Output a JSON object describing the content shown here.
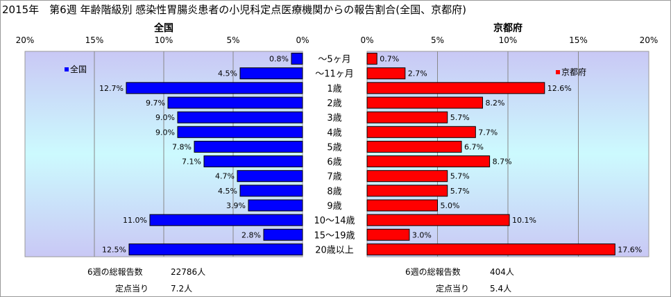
{
  "title": "2015年　第6週 年齢階級別 感染性胃腸炎患者の小児科定点医療機関からの報告割合(全国、京都府)",
  "chart_data": [
    {
      "type": "bar",
      "orientation": "horizontal",
      "direction": "right-to-left",
      "title": "全国",
      "legend": "全国",
      "legend_position": "top-left",
      "series_color": "#0000ff",
      "categories": [
        "～5ヶ月",
        "～11ヶ月",
        "1歳",
        "2歳",
        "3歳",
        "4歳",
        "5歳",
        "6歳",
        "7歳",
        "8歳",
        "9歳",
        "10～14歳",
        "15～19歳",
        "20歳以上"
      ],
      "values": [
        0.8,
        4.5,
        12.7,
        9.7,
        9.0,
        9.0,
        7.8,
        7.1,
        4.7,
        4.5,
        3.9,
        11.0,
        2.8,
        12.5
      ],
      "value_labels": [
        "0.8%",
        "4.5%",
        "12.7%",
        "9.7%",
        "9.0%",
        "9.0%",
        "7.8%",
        "7.1%",
        "4.7%",
        "4.5%",
        "3.9%",
        "11.0%",
        "2.8%",
        "12.5%"
      ],
      "xlim": [
        0,
        20
      ],
      "xticks": [
        "20%",
        "15%",
        "10%",
        "5%",
        "0%"
      ],
      "grid": true
    },
    {
      "type": "bar",
      "orientation": "horizontal",
      "direction": "left-to-right",
      "title": "京都府",
      "legend": "京都府",
      "legend_position": "top-right",
      "series_color": "#ff0000",
      "categories": [
        "～5ヶ月",
        "～11ヶ月",
        "1歳",
        "2歳",
        "3歳",
        "4歳",
        "5歳",
        "6歳",
        "7歳",
        "8歳",
        "9歳",
        "10～14歳",
        "15～19歳",
        "20歳以上"
      ],
      "values": [
        0.7,
        2.7,
        12.6,
        8.2,
        5.7,
        7.7,
        6.7,
        8.7,
        5.7,
        5.7,
        5.0,
        10.1,
        3.0,
        17.6
      ],
      "value_labels": [
        "0.7%",
        "2.7%",
        "12.6%",
        "8.2%",
        "5.7%",
        "7.7%",
        "6.7%",
        "8.7%",
        "5.7%",
        "5.7%",
        "5.0%",
        "10.1%",
        "3.0%",
        "17.6%"
      ],
      "xlim": [
        0,
        20
      ],
      "xticks": [
        "0%",
        "5%",
        "10%",
        "15%",
        "20%"
      ],
      "grid": true
    }
  ],
  "footer": {
    "national_total_label": "6週の総報告数",
    "national_total_value": "22786人",
    "national_per_site_label": "定点当り",
    "national_per_site_value": "7.2人",
    "kyoto_total_label": "6週の総報告数",
    "kyoto_total_value": "404人",
    "kyoto_per_site_label": "定点当り",
    "kyoto_per_site_value": "5.4人"
  }
}
